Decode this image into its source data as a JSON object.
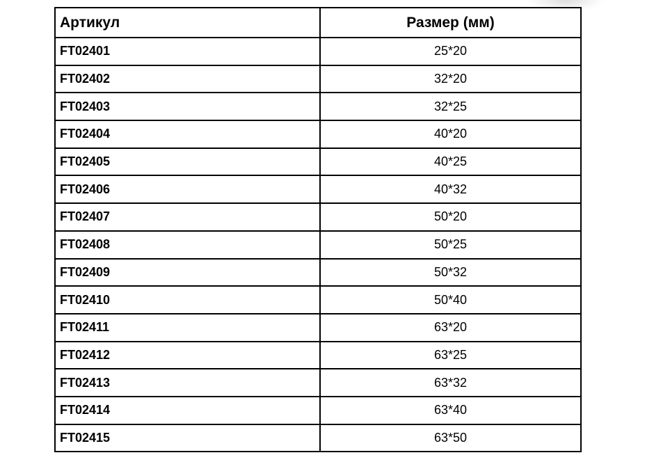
{
  "table": {
    "columns": [
      {
        "label": "Артикул",
        "align": "left"
      },
      {
        "label": "Размер (мм)",
        "align": "center"
      }
    ],
    "rows": [
      {
        "article": "FT02401",
        "size": "25*20"
      },
      {
        "article": "FT02402",
        "size": "32*20"
      },
      {
        "article": "FT02403",
        "size": "32*25"
      },
      {
        "article": "FT02404",
        "size": "40*20"
      },
      {
        "article": "FT02405",
        "size": "40*25"
      },
      {
        "article": "FT02406",
        "size": "40*32"
      },
      {
        "article": "FT02407",
        "size": "50*20"
      },
      {
        "article": "FT02408",
        "size": "50*25"
      },
      {
        "article": "FT02409",
        "size": "50*32"
      },
      {
        "article": "FT02410",
        "size": "50*40"
      },
      {
        "article": "FT02411",
        "size": "63*20"
      },
      {
        "article": "FT02412",
        "size": "63*25"
      },
      {
        "article": "FT02413",
        "size": "63*32"
      },
      {
        "article": "FT02414",
        "size": "63*40"
      },
      {
        "article": "FT02415",
        "size": "63*50"
      }
    ]
  },
  "colors": {
    "border": "#000000",
    "text": "#000000",
    "background": "#ffffff",
    "smudge": "#e9e9e9"
  }
}
